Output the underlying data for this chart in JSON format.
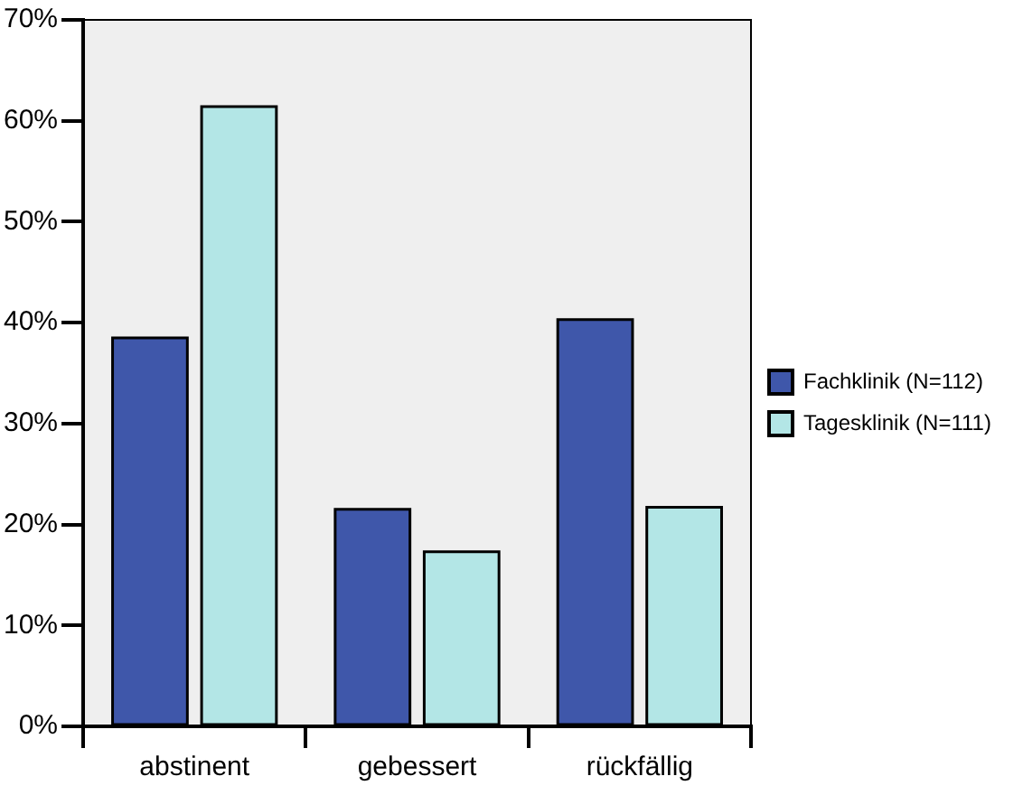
{
  "chart_data": {
    "type": "bar",
    "categories": [
      "abstinent",
      "gebessert",
      "rückfällig"
    ],
    "series": [
      {
        "name": "Fachklinik (N=112)",
        "color": "#3f57aa",
        "values": [
          38.5,
          21.5,
          40.3
        ]
      },
      {
        "name": "Tagesklinik (N=111)",
        "color": "#b3e6e6",
        "values": [
          61.4,
          17.3,
          21.7
        ]
      }
    ],
    "ylim": [
      0,
      70
    ],
    "yticks": [
      {
        "value": 0,
        "label": "0%"
      },
      {
        "value": 10,
        "label": "10%"
      },
      {
        "value": 20,
        "label": "20%"
      },
      {
        "value": 30,
        "label": "30%"
      },
      {
        "value": 40,
        "label": "40%"
      },
      {
        "value": 50,
        "label": "50%"
      },
      {
        "value": 60,
        "label": "60%"
      },
      {
        "value": 70,
        "label": "70%"
      }
    ],
    "grid": false,
    "legend": "right"
  }
}
